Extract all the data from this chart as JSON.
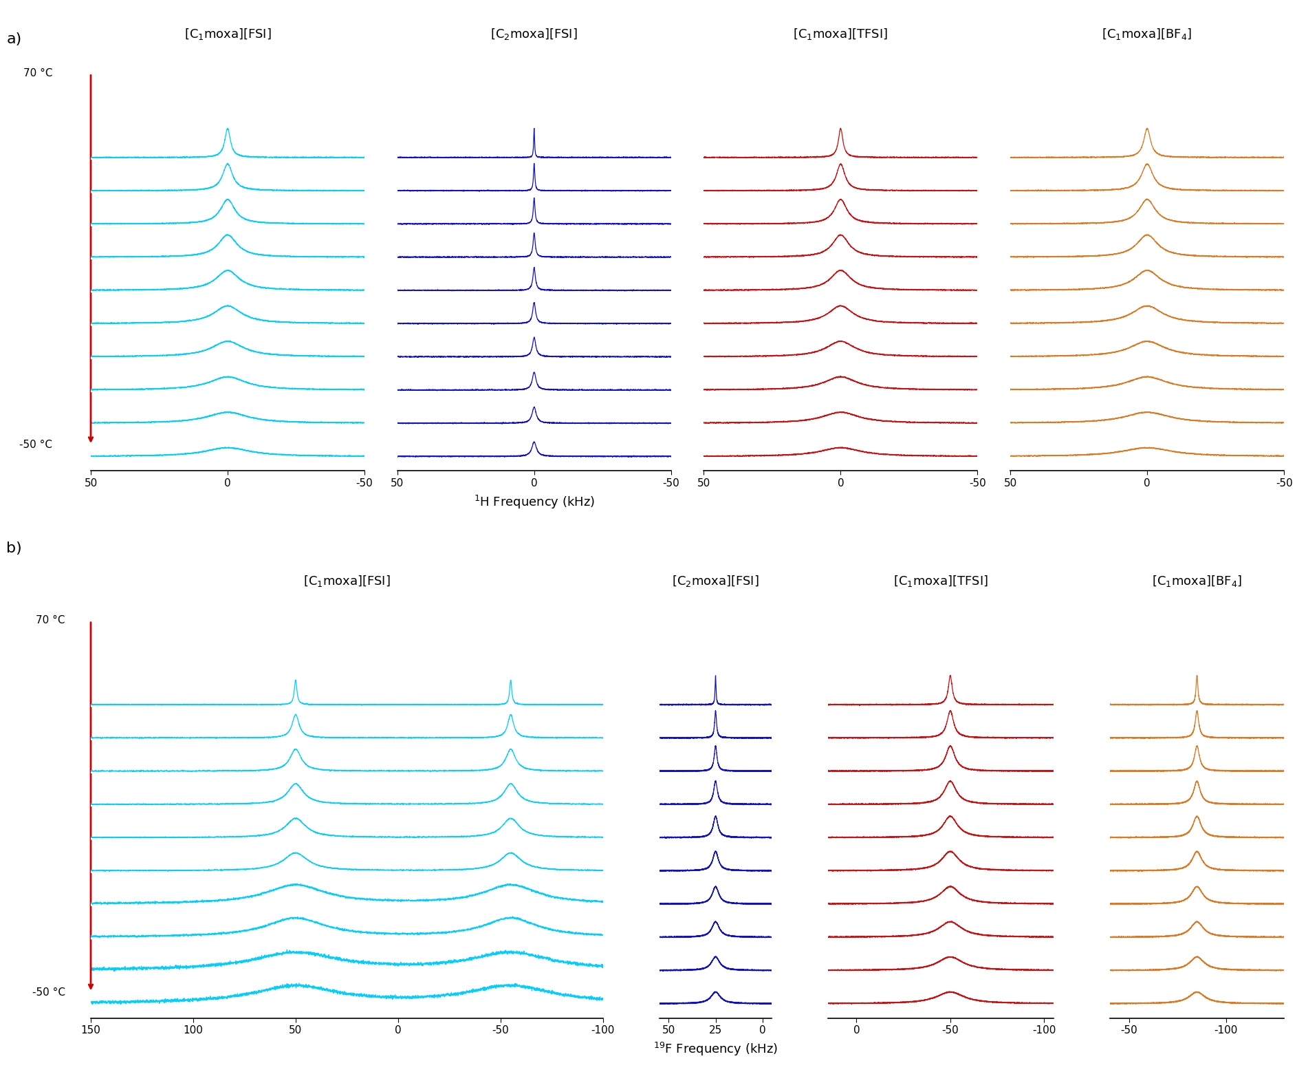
{
  "panel_a": {
    "title": "a)",
    "compounds": [
      "[C$_1$moxa][FSI]",
      "[C$_2$moxa][FSI]",
      "[C$_1$moxa][TFSI]",
      "[C$_1$moxa][BF$_4$]"
    ],
    "colors": [
      "#00CFFF",
      "#1010CC",
      "#CC1010",
      "#E07820"
    ],
    "xrange": [
      50,
      -50
    ],
    "xticks": [
      50,
      0,
      -50
    ],
    "xlabel": "$^1$H Frequency (kHz)",
    "n_traces": 10
  },
  "panel_b": {
    "title": "b)",
    "compounds": [
      "[C$_1$moxa][FSI]",
      "[C$_2$moxa][FSI]",
      "[C$_1$moxa][TFSI]",
      "[C$_1$moxa][BF$_4$]"
    ],
    "colors": [
      "#00CFFF",
      "#1010CC",
      "#CC1010",
      "#E07820"
    ],
    "xranges": [
      [
        150,
        -100
      ],
      [
        55,
        -5
      ],
      [
        15,
        -105
      ],
      [
        -40,
        -130
      ]
    ],
    "xticks": [
      [
        150,
        100,
        50,
        0,
        -50,
        -100
      ],
      [
        50,
        25,
        0
      ],
      [
        0,
        -50,
        -100
      ],
      [
        -50,
        -100
      ]
    ],
    "xtick_labels": [
      [
        "150",
        "100",
        "50",
        "0",
        "-50",
        "-100"
      ],
      [
        "50",
        "25",
        "0"
      ],
      [
        "0",
        "-50",
        "-100"
      ],
      [
        "-50",
        "-100"
      ]
    ],
    "xlabel": "$^{19}$F Frequency (kHz)",
    "n_traces": 10
  },
  "temp_top": "70 °C",
  "temp_bot": "-50 °C",
  "arrow_color": "#CC0000",
  "background": "#FFFFFF"
}
